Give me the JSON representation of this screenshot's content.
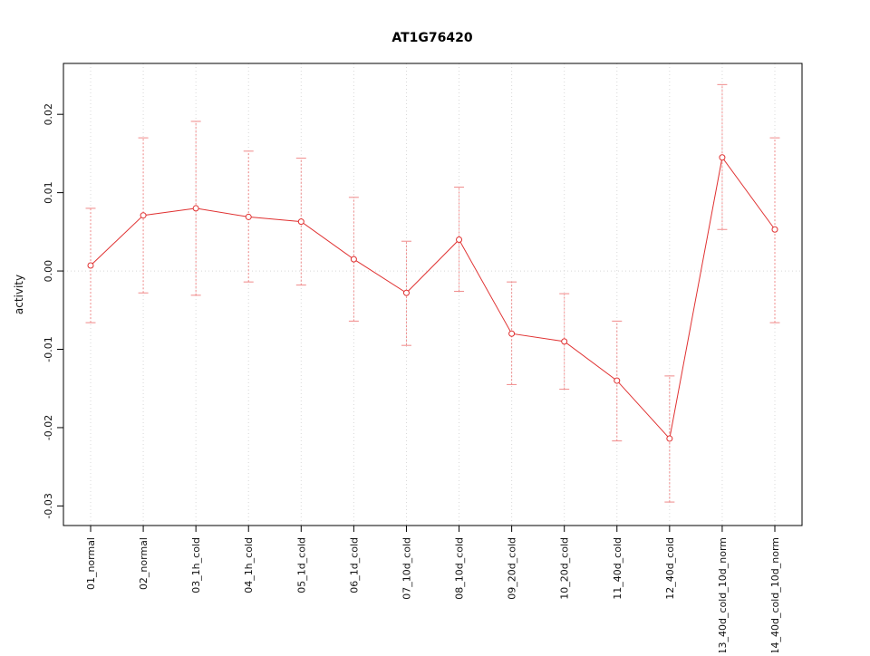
{
  "chart_data": {
    "type": "line",
    "title": "AT1G76420",
    "ylabel": "activity",
    "xlabel": "",
    "ylim": [
      -0.0325,
      0.0265
    ],
    "yticks": [
      -0.03,
      -0.02,
      -0.01,
      0.0,
      0.01,
      0.02
    ],
    "grid": "dotted vertical line at each category; dotted horizontal line at y=0",
    "legend": "none",
    "categories": [
      "01_normal",
      "02_normal",
      "03_1h_cold",
      "04_1h_cold",
      "05_1d_cold",
      "06_1d_cold",
      "07_10d_cold",
      "08_10d_cold",
      "09_20d_cold",
      "10_20d_cold",
      "11_40d_cold",
      "12_40d_cold",
      "13_40d_cold_10d_norm",
      "14_40d_cold_10d_norm"
    ],
    "series": [
      {
        "name": "activity",
        "means": [
          0.0007,
          0.0071,
          0.008,
          0.0069,
          0.0063,
          0.0015,
          -0.0028,
          0.004,
          -0.008,
          -0.009,
          -0.014,
          -0.0214,
          0.0145,
          0.0053
        ],
        "lower": [
          -0.0066,
          -0.0028,
          -0.0031,
          -0.0014,
          -0.0018,
          -0.0064,
          -0.0095,
          -0.0026,
          -0.0145,
          -0.0151,
          -0.0217,
          -0.0295,
          0.0053,
          -0.0066
        ],
        "upper": [
          0.008,
          0.017,
          0.0191,
          0.0153,
          0.0144,
          0.0094,
          0.0038,
          0.0107,
          -0.0014,
          -0.0029,
          -0.0064,
          -0.0134,
          0.0238,
          0.017
        ]
      }
    ],
    "colors": {
      "line": "#e03131",
      "point_stroke": "#e03131",
      "point_fill": "#ffffff",
      "errorbar": "#f08a8a",
      "grid": "#d8d8d8",
      "axis": "#000000",
      "text": "#111111"
    }
  }
}
